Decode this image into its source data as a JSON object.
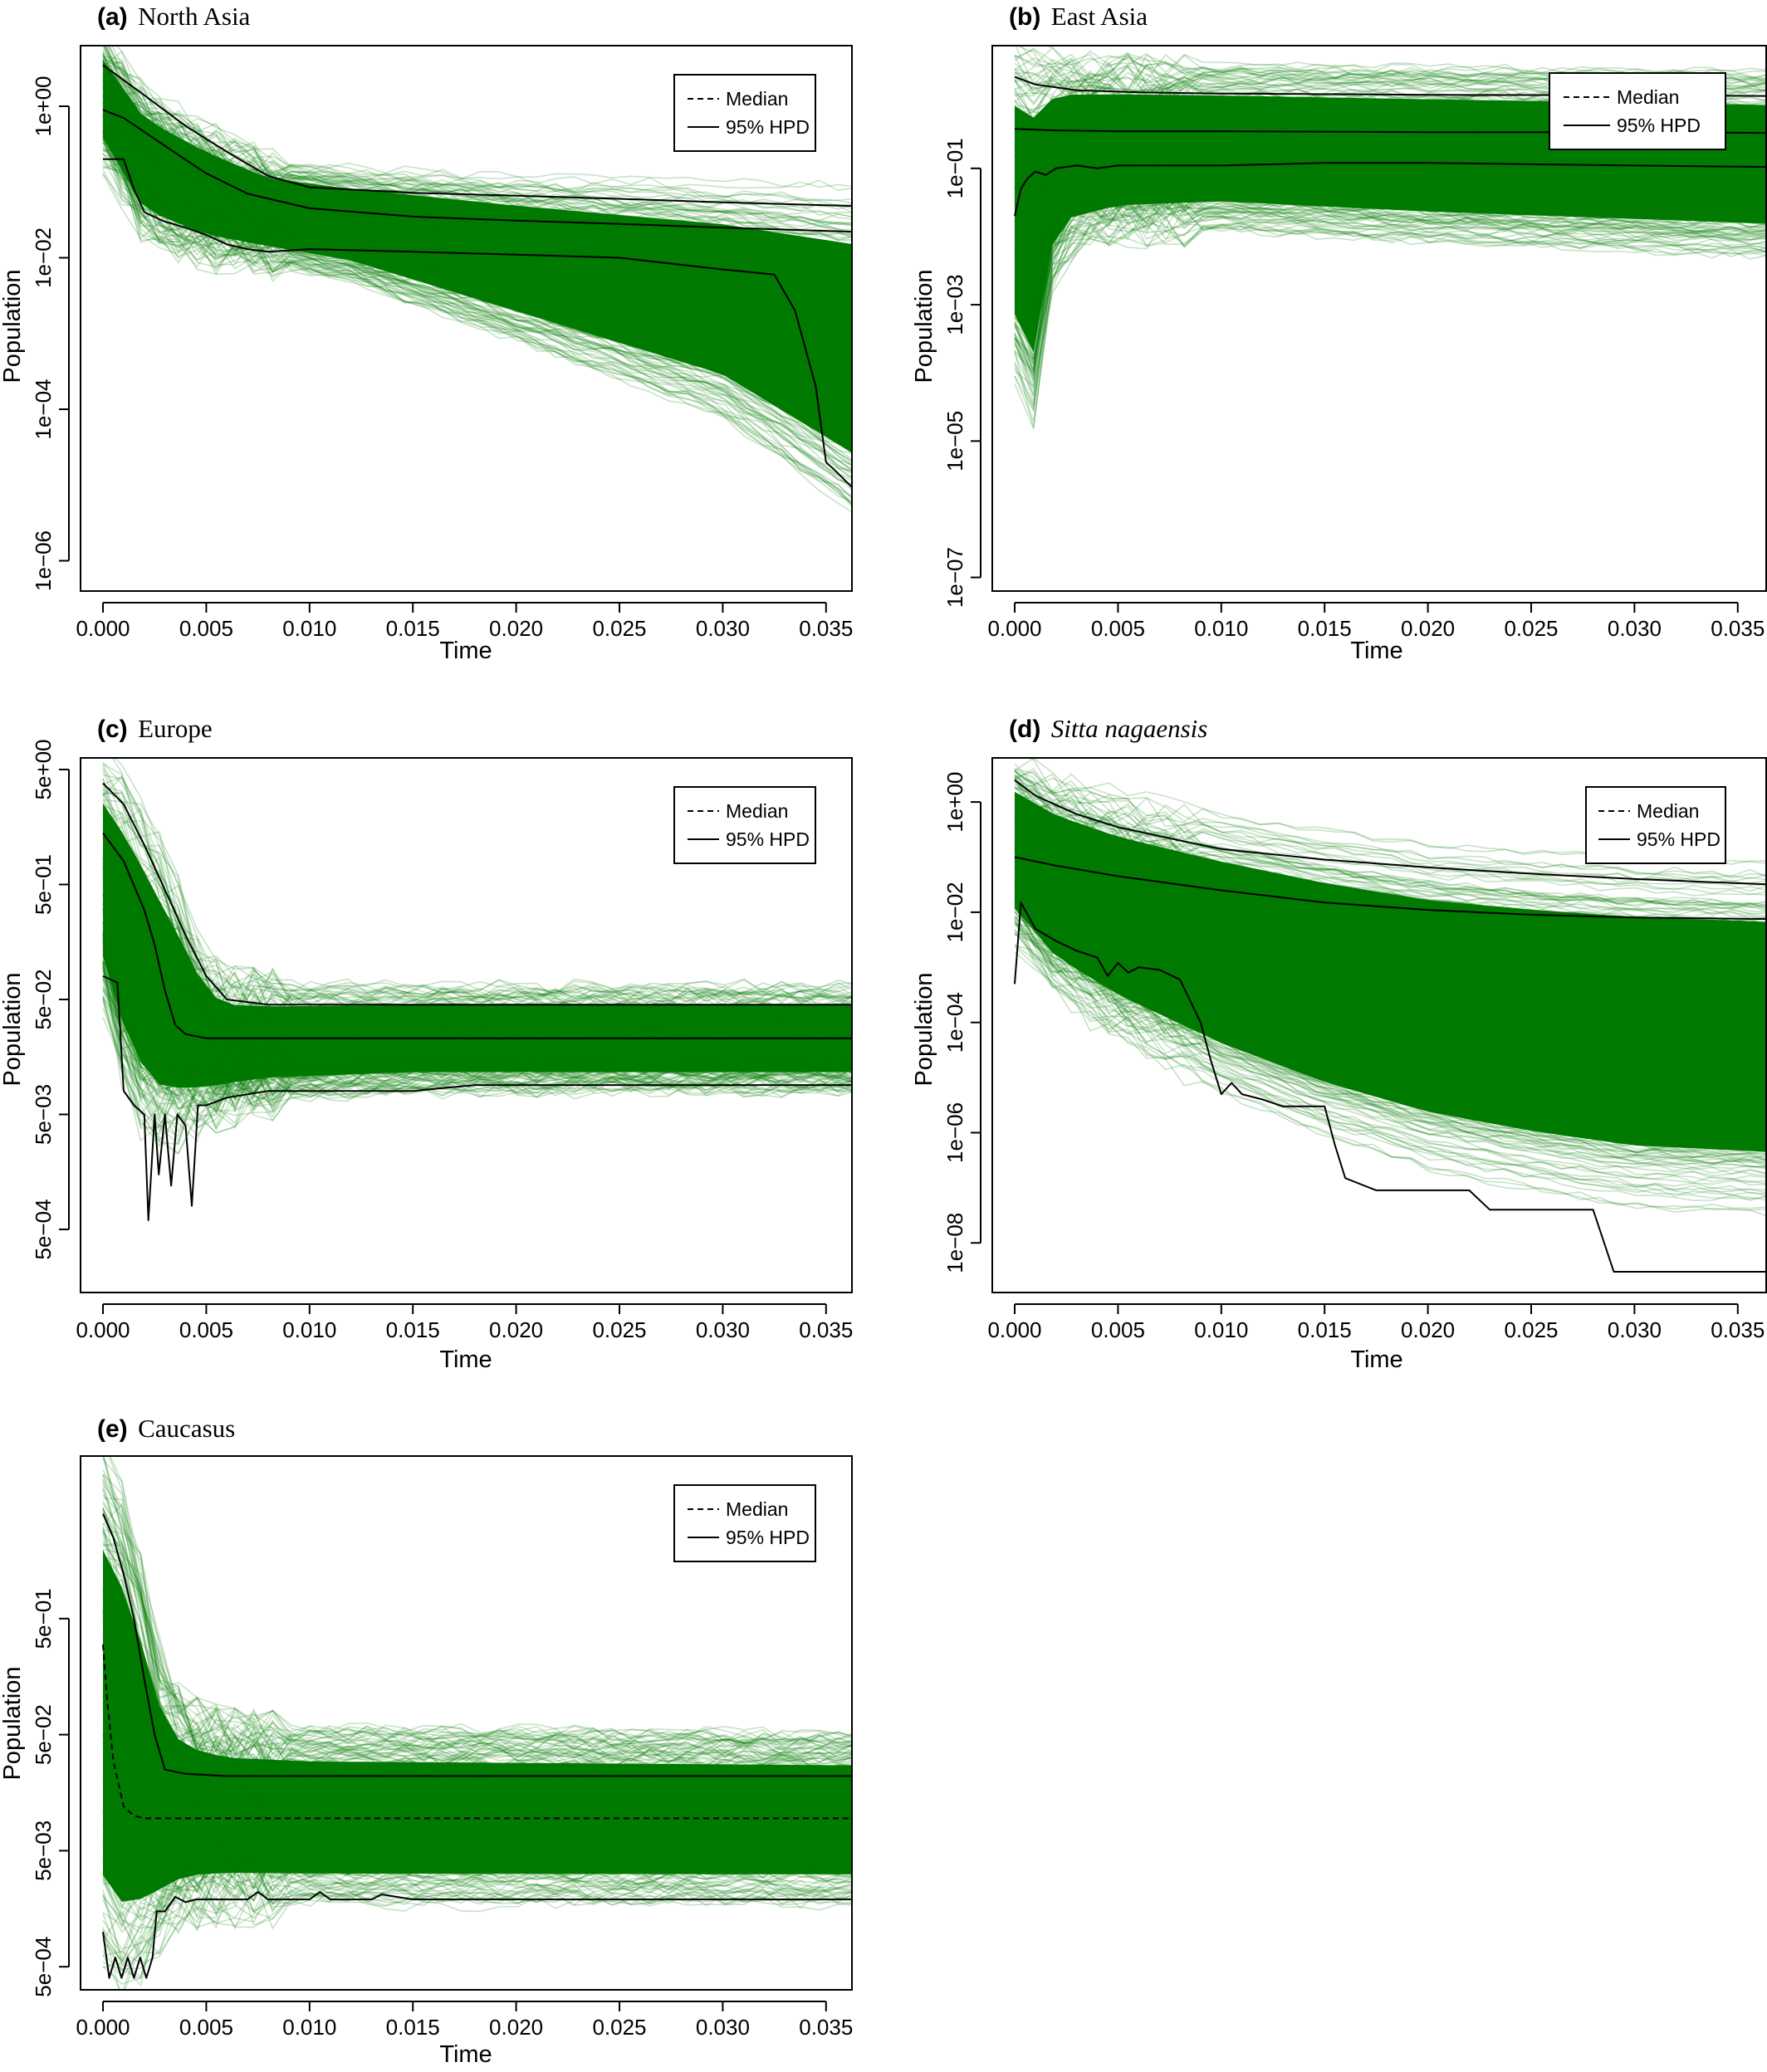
{
  "figure": {
    "ensemble_color": "#007a00",
    "median_style": "dashed",
    "hpd_style": "solid"
  },
  "chart_data": [
    {
      "id": "a",
      "type": "line",
      "title_letter": "(a)",
      "title_name": "North Asia",
      "title_italic": false,
      "xlabel": "Time",
      "ylabel": "Population",
      "xlim": [
        0,
        0.0365
      ],
      "yscale": "log",
      "ylim_log10": [
        -6.4,
        0.8
      ],
      "xticks": [
        {
          "value": 0.0,
          "label": "0.000"
        },
        {
          "value": 0.005,
          "label": "0.005"
        },
        {
          "value": 0.01,
          "label": "0.010"
        },
        {
          "value": 0.015,
          "label": "0.015"
        },
        {
          "value": 0.02,
          "label": "0.020"
        },
        {
          "value": 0.025,
          "label": "0.025"
        },
        {
          "value": 0.03,
          "label": "0.030"
        },
        {
          "value": 0.035,
          "label": "0.035"
        }
      ],
      "yticks": [
        {
          "value": 1,
          "label": "1e+00"
        },
        {
          "value": 0.01,
          "label": "1e−02"
        },
        {
          "value": 0.0001,
          "label": "1e−04"
        },
        {
          "value": 1e-06,
          "label": "1e−06"
        }
      ],
      "legend": {
        "position": "top-right",
        "entries": [
          {
            "label": "Median",
            "style": "dashed"
          },
          {
            "label": "95% HPD",
            "style": "solid"
          }
        ]
      },
      "envelope": {
        "x": [
          0,
          0.002,
          0.005,
          0.008,
          0.012,
          0.02,
          0.03,
          0.0365
        ],
        "upper": [
          8,
          1.5,
          0.5,
          0.2,
          0.15,
          0.12,
          0.1,
          0.09
        ],
        "lower": [
          0.2,
          0.02,
          0.01,
          0.008,
          0.005,
          0.0008,
          8e-05,
          4e-06
        ]
      },
      "hpd_upper": {
        "x": [
          0,
          0.002,
          0.004,
          0.006,
          0.008,
          0.01,
          0.015,
          0.02,
          0.025,
          0.03,
          0.0365
        ],
        "y": [
          3.5,
          1.4,
          0.55,
          0.25,
          0.12,
          0.085,
          0.072,
          0.066,
          0.06,
          0.054,
          0.048
        ]
      },
      "median": {
        "x": [
          0,
          0.001,
          0.003,
          0.005,
          0.007,
          0.01,
          0.015,
          0.02,
          0.025,
          0.03,
          0.0365
        ],
        "y": [
          0.9,
          0.7,
          0.3,
          0.13,
          0.07,
          0.045,
          0.035,
          0.031,
          0.028,
          0.025,
          0.022
        ]
      },
      "hpd_lower": {
        "x": [
          0,
          0.001,
          0.0015,
          0.002,
          0.003,
          0.004,
          0.005,
          0.006,
          0.007,
          0.008,
          0.01,
          0.015,
          0.02,
          0.025,
          0.03,
          0.0325,
          0.0335,
          0.0345,
          0.035,
          0.0355,
          0.0365
        ],
        "y": [
          0.2,
          0.2,
          0.08,
          0.04,
          0.03,
          0.025,
          0.02,
          0.015,
          0.013,
          0.012,
          0.013,
          0.012,
          0.011,
          0.01,
          0.007,
          0.006,
          0.002,
          0.0002,
          2e-05,
          1.5e-05,
          8e-06
        ]
      }
    },
    {
      "id": "b",
      "type": "line",
      "title_letter": "(b)",
      "title_name": "East Asia",
      "title_italic": false,
      "xlabel": "Time",
      "ylabel": "Population",
      "xlim": [
        0,
        0.0365
      ],
      "yscale": "log",
      "ylim_log10": [
        -7.2,
        0.8
      ],
      "xticks": [
        {
          "value": 0.0,
          "label": "0.000"
        },
        {
          "value": 0.005,
          "label": "0.005"
        },
        {
          "value": 0.01,
          "label": "0.010"
        },
        {
          "value": 0.015,
          "label": "0.015"
        },
        {
          "value": 0.02,
          "label": "0.020"
        },
        {
          "value": 0.025,
          "label": "0.025"
        },
        {
          "value": 0.03,
          "label": "0.030"
        },
        {
          "value": 0.035,
          "label": "0.035"
        }
      ],
      "yticks": [
        {
          "value": 0.1,
          "label": "1e−01"
        },
        {
          "value": 0.001,
          "label": "1e−03"
        },
        {
          "value": 1e-05,
          "label": "1e−05"
        },
        {
          "value": 1e-07,
          "label": "1e−07"
        }
      ],
      "legend": {
        "position": "top-right",
        "entries": [
          {
            "label": "Median",
            "style": "dashed"
          },
          {
            "label": "95% HPD",
            "style": "solid"
          }
        ]
      },
      "envelope": {
        "x": [
          0,
          0.0005,
          0.001,
          0.002,
          0.005,
          0.01,
          0.02,
          0.03,
          0.0365
        ],
        "upper": [
          6,
          6,
          5,
          4,
          3.5,
          3.2,
          3,
          2.8,
          2.6
        ],
        "lower": [
          0.0001,
          3e-05,
          2e-05,
          0.005,
          0.01,
          0.012,
          0.008,
          0.006,
          0.005
        ]
      },
      "hpd_upper": {
        "x": [
          0,
          0.001,
          0.003,
          0.006,
          0.01,
          0.02,
          0.03,
          0.0365
        ],
        "y": [
          2.2,
          1.7,
          1.4,
          1.3,
          1.25,
          1.2,
          1.18,
          1.15
        ]
      },
      "median": {
        "x": [
          0,
          0.002,
          0.005,
          0.01,
          0.02,
          0.03,
          0.0365
        ],
        "y": [
          0.38,
          0.36,
          0.35,
          0.35,
          0.34,
          0.34,
          0.33
        ]
      },
      "hpd_lower": {
        "x": [
          0,
          0.0003,
          0.0006,
          0.001,
          0.0015,
          0.002,
          0.003,
          0.004,
          0.005,
          0.007,
          0.01,
          0.015,
          0.02,
          0.03,
          0.0365
        ],
        "y": [
          0.02,
          0.05,
          0.07,
          0.09,
          0.08,
          0.1,
          0.11,
          0.1,
          0.11,
          0.11,
          0.11,
          0.12,
          0.12,
          0.11,
          0.105
        ]
      }
    },
    {
      "id": "c",
      "type": "line",
      "title_letter": "(c)",
      "title_name": "Europe",
      "title_italic": false,
      "xlabel": "Time",
      "ylabel": "Population",
      "xlim": [
        0,
        0.0365
      ],
      "yscale": "log",
      "ylim_log10": [
        -3.85,
        0.8
      ],
      "xticks": [
        {
          "value": 0.0,
          "label": "0.000"
        },
        {
          "value": 0.005,
          "label": "0.005"
        },
        {
          "value": 0.01,
          "label": "0.010"
        },
        {
          "value": 0.015,
          "label": "0.015"
        },
        {
          "value": 0.02,
          "label": "0.020"
        },
        {
          "value": 0.025,
          "label": "0.025"
        },
        {
          "value": 0.03,
          "label": "0.030"
        },
        {
          "value": 0.035,
          "label": "0.035"
        }
      ],
      "yticks": [
        {
          "value": 5,
          "label": "5e+00"
        },
        {
          "value": 0.5,
          "label": "5e−01"
        },
        {
          "value": 0.05,
          "label": "5e−02"
        },
        {
          "value": 0.005,
          "label": "5e−03"
        },
        {
          "value": 0.0005,
          "label": "5e−04"
        }
      ],
      "legend": {
        "position": "top-right",
        "entries": [
          {
            "label": "Median",
            "style": "dashed"
          },
          {
            "label": "95% HPD",
            "style": "solid"
          }
        ]
      },
      "envelope": {
        "x": [
          0,
          0.001,
          0.002,
          0.003,
          0.004,
          0.005,
          0.006,
          0.008,
          0.015,
          0.0365
        ],
        "upper": [
          6,
          4,
          2,
          0.8,
          0.3,
          0.1,
          0.07,
          0.065,
          0.065,
          0.065
        ],
        "lower": [
          0.05,
          0.01,
          0.004,
          0.003,
          0.004,
          0.005,
          0.006,
          0.007,
          0.008,
          0.008
        ]
      },
      "hpd_upper": {
        "x": [
          0,
          0.001,
          0.002,
          0.003,
          0.004,
          0.005,
          0.006,
          0.008,
          0.015,
          0.0365
        ],
        "y": [
          3.8,
          2.5,
          1.1,
          0.45,
          0.18,
          0.08,
          0.05,
          0.045,
          0.045,
          0.045
        ]
      },
      "median": {
        "x": [
          0,
          0.001,
          0.002,
          0.0025,
          0.003,
          0.0035,
          0.004,
          0.005,
          0.008,
          0.0365
        ],
        "y": [
          1.4,
          0.8,
          0.3,
          0.15,
          0.06,
          0.03,
          0.025,
          0.023,
          0.023,
          0.023
        ]
      },
      "hpd_lower": {
        "x": [
          0,
          0.0007,
          0.001,
          0.0015,
          0.002,
          0.0022,
          0.0025,
          0.0027,
          0.003,
          0.0033,
          0.0036,
          0.004,
          0.0043,
          0.0046,
          0.005,
          0.006,
          0.008,
          0.015,
          0.018,
          0.0365
        ],
        "y": [
          0.08,
          0.07,
          0.008,
          0.006,
          0.005,
          0.0006,
          0.005,
          0.0015,
          0.005,
          0.0012,
          0.005,
          0.004,
          0.0008,
          0.006,
          0.006,
          0.007,
          0.008,
          0.008,
          0.009,
          0.009
        ]
      }
    },
    {
      "id": "d",
      "type": "line",
      "title_letter": "(d)",
      "title_name": "Sitta nagaensis",
      "title_italic": true,
      "xlabel": "Time",
      "ylabel": "Population",
      "xlim": [
        0,
        0.0365
      ],
      "yscale": "log",
      "ylim_log10": [
        -8.9,
        0.8
      ],
      "xticks": [
        {
          "value": 0.0,
          "label": "0.000"
        },
        {
          "value": 0.005,
          "label": "0.005"
        },
        {
          "value": 0.01,
          "label": "0.010"
        },
        {
          "value": 0.015,
          "label": "0.015"
        },
        {
          "value": 0.02,
          "label": "0.020"
        },
        {
          "value": 0.025,
          "label": "0.025"
        },
        {
          "value": 0.03,
          "label": "0.030"
        },
        {
          "value": 0.035,
          "label": "0.035"
        }
      ],
      "yticks": [
        {
          "value": 1,
          "label": "1e+00"
        },
        {
          "value": 0.01,
          "label": "1e−02"
        },
        {
          "value": 0.0001,
          "label": "1e−04"
        },
        {
          "value": 1e-06,
          "label": "1e−06"
        },
        {
          "value": 1e-08,
          "label": "1e−08"
        }
      ],
      "legend": {
        "position": "top-right",
        "entries": [
          {
            "label": "Median",
            "style": "dashed"
          },
          {
            "label": "95% HPD",
            "style": "solid"
          }
        ]
      },
      "envelope": {
        "x": [
          0,
          0.002,
          0.005,
          0.01,
          0.015,
          0.02,
          0.025,
          0.03,
          0.0365
        ],
        "upper": [
          6,
          3,
          1.5,
          0.7,
          0.35,
          0.2,
          0.15,
          0.12,
          0.1
        ],
        "lower": [
          0.003,
          0.0003,
          5e-05,
          5e-06,
          8e-07,
          2e-07,
          8e-08,
          4e-08,
          3e-08
        ]
      },
      "hpd_upper": {
        "x": [
          0,
          0.001,
          0.003,
          0.005,
          0.008,
          0.01,
          0.015,
          0.02,
          0.025,
          0.03,
          0.0365
        ],
        "y": [
          2.5,
          1.3,
          0.6,
          0.35,
          0.2,
          0.14,
          0.09,
          0.065,
          0.05,
          0.04,
          0.032
        ]
      },
      "median": {
        "x": [
          0,
          0.002,
          0.005,
          0.01,
          0.015,
          0.02,
          0.025,
          0.03,
          0.0365
        ],
        "y": [
          0.1,
          0.07,
          0.045,
          0.025,
          0.015,
          0.011,
          0.009,
          0.008,
          0.0075
        ]
      },
      "hpd_lower": {
        "x": [
          0,
          0.0003,
          0.001,
          0.002,
          0.003,
          0.004,
          0.0045,
          0.005,
          0.0055,
          0.006,
          0.007,
          0.008,
          0.009,
          0.0095,
          0.01,
          0.0105,
          0.011,
          0.012,
          0.013,
          0.015,
          0.0155,
          0.016,
          0.0175,
          0.022,
          0.023,
          0.028,
          0.029,
          0.0365
        ],
        "y": [
          0.0005,
          0.015,
          0.005,
          0.003,
          0.002,
          0.0015,
          0.0007,
          0.0012,
          0.0008,
          0.001,
          0.0009,
          0.0006,
          0.0001,
          2e-05,
          5e-06,
          8e-06,
          5e-06,
          4e-06,
          3e-06,
          3e-06,
          6e-07,
          1.5e-07,
          9e-08,
          9e-08,
          4e-08,
          4e-08,
          3e-09,
          3e-09
        ]
      }
    },
    {
      "id": "e",
      "type": "line",
      "title_letter": "(e)",
      "title_name": "Caucasus",
      "title_italic": false,
      "xlabel": "Time",
      "ylabel": "Population",
      "xlim": [
        0,
        0.0365
      ],
      "yscale": "log",
      "ylim_log10": [
        -3.5,
        1.1
      ],
      "xticks": [
        {
          "value": 0.0,
          "label": "0.000"
        },
        {
          "value": 0.005,
          "label": "0.005"
        },
        {
          "value": 0.01,
          "label": "0.010"
        },
        {
          "value": 0.015,
          "label": "0.015"
        },
        {
          "value": 0.02,
          "label": "0.020"
        },
        {
          "value": 0.025,
          "label": "0.025"
        },
        {
          "value": 0.03,
          "label": "0.030"
        },
        {
          "value": 0.035,
          "label": "0.035"
        }
      ],
      "yticks": [
        {
          "value": 0.5,
          "label": "5e−01"
        },
        {
          "value": 0.05,
          "label": "5e−02"
        },
        {
          "value": 0.005,
          "label": "5e−03"
        },
        {
          "value": 0.0005,
          "label": "5e−04"
        }
      ],
      "legend": {
        "position": "top-right",
        "entries": [
          {
            "label": "Median",
            "style": "dashed"
          },
          {
            "label": "95% HPD",
            "style": "solid"
          }
        ]
      },
      "envelope": {
        "x": [
          0,
          0.001,
          0.002,
          0.003,
          0.004,
          0.006,
          0.01,
          0.0365
        ],
        "upper": [
          12,
          5,
          1,
          0.15,
          0.08,
          0.06,
          0.055,
          0.05
        ],
        "lower": [
          0.0005,
          0.0003,
          0.0005,
          0.001,
          0.0015,
          0.0017,
          0.0017,
          0.0017
        ]
      },
      "hpd_upper": {
        "x": [
          0,
          0.0005,
          0.001,
          0.0015,
          0.002,
          0.0025,
          0.003,
          0.004,
          0.006,
          0.01,
          0.0365
        ],
        "y": [
          4,
          2.5,
          1.2,
          0.5,
          0.15,
          0.05,
          0.025,
          0.023,
          0.022,
          0.022,
          0.022
        ]
      },
      "median": {
        "x": [
          0,
          0.0002,
          0.0005,
          0.001,
          0.0015,
          0.002,
          0.003,
          0.005,
          0.0365
        ],
        "y": [
          0.3,
          0.1,
          0.03,
          0.012,
          0.01,
          0.0095,
          0.0095,
          0.0095,
          0.0095
        ]
      },
      "hpd_lower": {
        "x": [
          0,
          0.0003,
          0.0006,
          0.0009,
          0.0012,
          0.0015,
          0.0018,
          0.0021,
          0.0024,
          0.0026,
          0.003,
          0.0035,
          0.004,
          0.0045,
          0.006,
          0.007,
          0.0075,
          0.008,
          0.01,
          0.0105,
          0.011,
          0.013,
          0.0135,
          0.015,
          0.0365
        ],
        "y": [
          0.001,
          0.0004,
          0.0006,
          0.0004,
          0.0006,
          0.0004,
          0.0006,
          0.0004,
          0.0006,
          0.0015,
          0.0015,
          0.002,
          0.0018,
          0.0019,
          0.0019,
          0.0019,
          0.0022,
          0.0019,
          0.0019,
          0.0022,
          0.0019,
          0.0019,
          0.0021,
          0.0019,
          0.0019
        ]
      }
    }
  ]
}
